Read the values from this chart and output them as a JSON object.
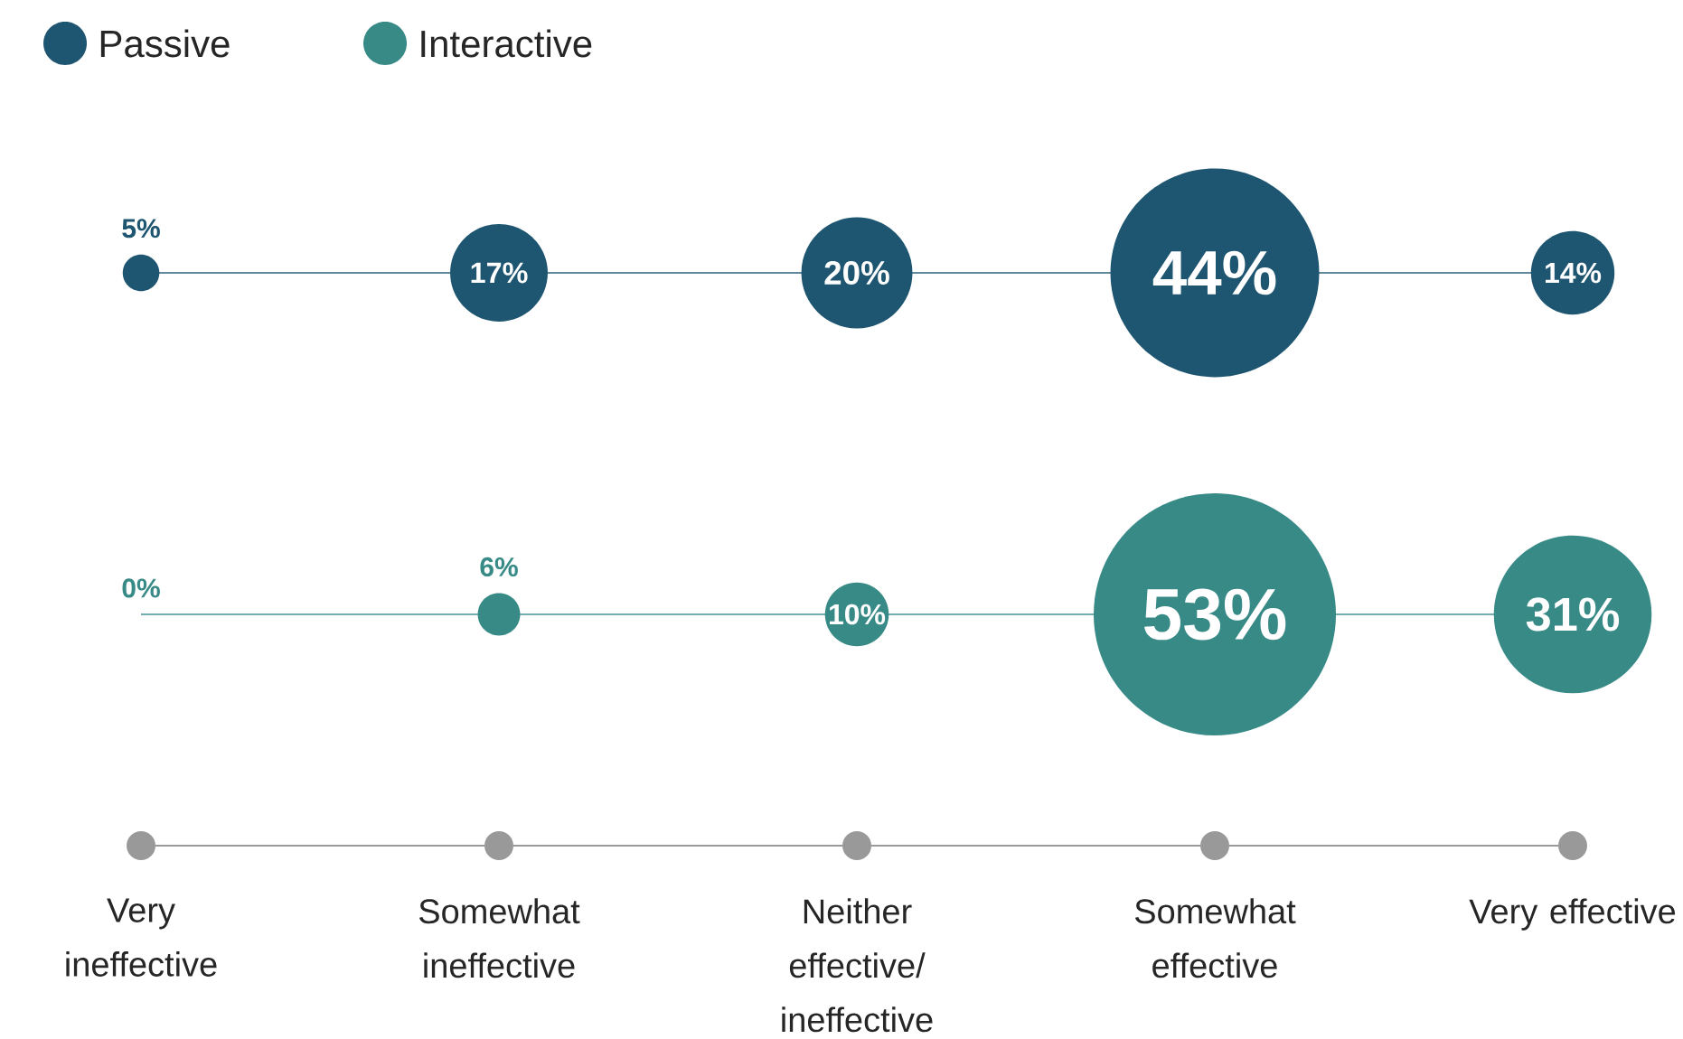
{
  "chart_data": {
    "type": "other",
    "categories": [
      "Very ineffective",
      "Somewhat ineffective",
      "Neither effective/ ineffective",
      "Somewhat effective",
      "Very effective"
    ],
    "series": [
      {
        "name": "Passive",
        "color": "#1e5570",
        "values": [
          5,
          17,
          20,
          44,
          14
        ],
        "value_labels": [
          "5%",
          "17%",
          "20%",
          "44%",
          "14%"
        ]
      },
      {
        "name": "Interactive",
        "color": "#388a87",
        "values": [
          0,
          6,
          10,
          53,
          31
        ],
        "value_labels": [
          "0%",
          "6%",
          "10%",
          "53%",
          "31%"
        ]
      }
    ],
    "legend": "top left"
  }
}
